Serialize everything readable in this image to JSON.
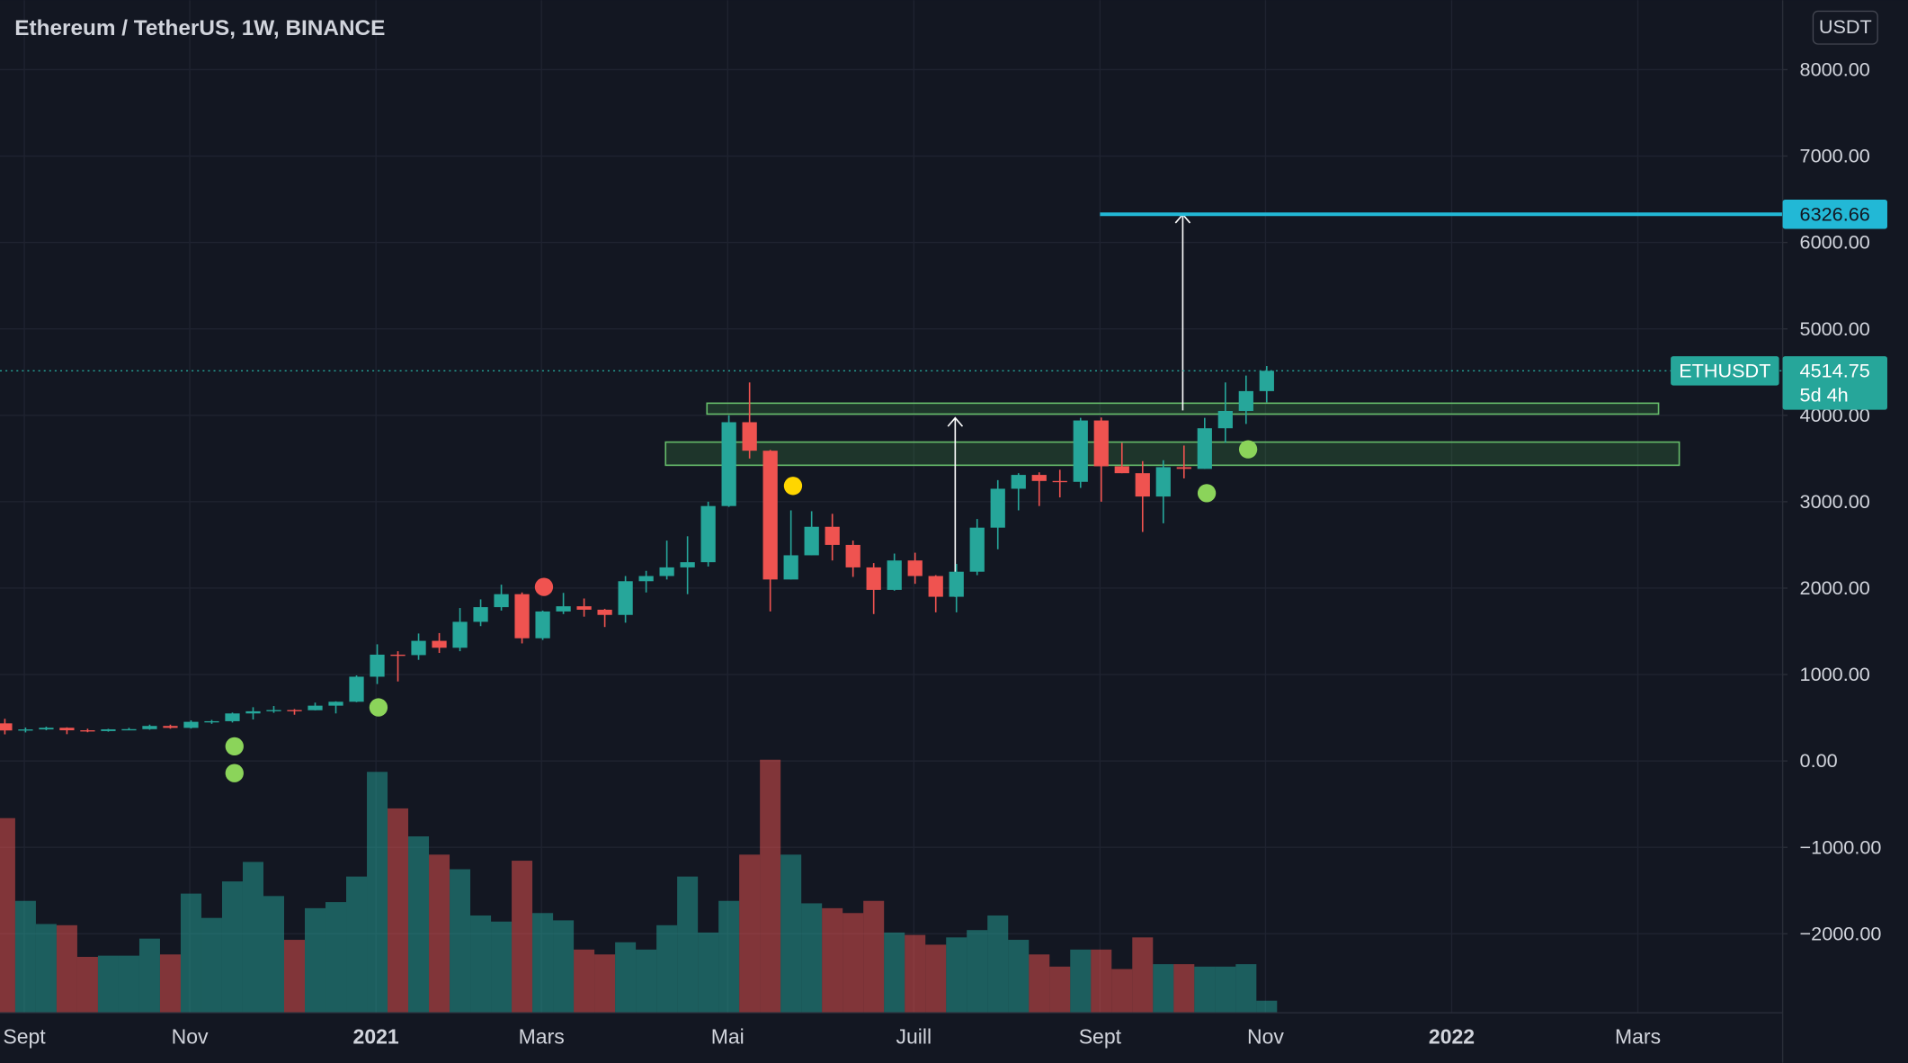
{
  "chart_data": {
    "type": "candlestick",
    "title": "Ethereum / TetherUS, 1W, BINANCE",
    "currency": "USDT",
    "up_color": "#26a69a",
    "down_color": "#ef5350",
    "grid": true,
    "x": [
      0,
      1,
      2,
      3,
      4,
      5,
      6,
      7,
      8,
      9,
      10,
      11,
      12,
      13,
      14,
      15,
      16,
      17,
      18,
      19,
      20,
      21,
      22,
      23,
      24,
      25,
      26,
      27,
      28,
      29,
      30,
      31,
      32,
      33,
      34,
      35,
      36,
      37,
      38,
      39,
      40,
      41,
      42,
      43,
      44,
      45,
      46,
      47,
      48,
      49,
      50,
      51,
      52,
      53,
      54,
      55,
      56,
      57,
      58,
      59,
      60,
      61
    ],
    "series": [
      {
        "name": "ETHUSDT",
        "open": [
          435,
          353,
          365,
          384,
          355,
          346,
          366,
          368,
          405,
          383,
          453,
          460,
          550,
          575,
          589,
          587,
          640,
          685,
          975,
          1230,
          1225,
          1390,
          1310,
          1610,
          1780,
          1930,
          1420,
          1730,
          1790,
          1750,
          1690,
          2080,
          2140,
          2240,
          2300,
          2950,
          3920,
          3590,
          2100,
          2380,
          2710,
          2500,
          2240,
          1980,
          2320,
          2140,
          1900,
          2190,
          2700,
          3150,
          3310,
          3240,
          3230,
          3940,
          3410,
          3330,
          3060,
          3400,
          3380,
          3850,
          4050,
          4280
        ],
        "high": [
          488,
          387,
          397,
          389,
          373,
          372,
          383,
          420,
          420,
          470,
          475,
          560,
          622,
          636,
          600,
          675,
          690,
          990,
          1350,
          1270,
          1475,
          1480,
          1770,
          1870,
          2040,
          1950,
          1740,
          1945,
          1880,
          1760,
          2140,
          2200,
          2550,
          2600,
          3000,
          4000,
          4380,
          3600,
          2900,
          2890,
          2860,
          2550,
          2290,
          2400,
          2410,
          2150,
          2280,
          2800,
          3250,
          3330,
          3340,
          3370,
          3970,
          3975,
          3680,
          3470,
          3480,
          3650,
          3970,
          4380,
          4460,
          4570
        ],
        "low": [
          308,
          330,
          355,
          310,
          332,
          339,
          360,
          361,
          373,
          375,
          430,
          445,
          480,
          557,
          535,
          585,
          550,
          680,
          890,
          920,
          1170,
          1250,
          1270,
          1560,
          1740,
          1360,
          1400,
          1700,
          1670,
          1550,
          1600,
          1950,
          2100,
          1930,
          2250,
          2940,
          3500,
          1730,
          2100,
          2380,
          2320,
          2130,
          1700,
          1970,
          2050,
          1720,
          1720,
          2150,
          2450,
          2900,
          2950,
          3050,
          3160,
          3000,
          3330,
          2650,
          2750,
          3270,
          3380,
          3680,
          3900,
          4150
        ],
        "close": [
          353,
          365,
          384,
          355,
          346,
          366,
          368,
          405,
          383,
          453,
          460,
          550,
          575,
          589,
          587,
          640,
          685,
          975,
          1230,
          1225,
          1390,
          1310,
          1610,
          1780,
          1930,
          1420,
          1730,
          1790,
          1750,
          1690,
          2080,
          2140,
          2240,
          2300,
          2950,
          3920,
          3590,
          2100,
          2380,
          2710,
          2500,
          2240,
          1980,
          2320,
          2140,
          1900,
          2190,
          2700,
          3150,
          3310,
          3240,
          3230,
          3940,
          3410,
          3330,
          3060,
          3400,
          3380,
          3850,
          4050,
          4280,
          4514.75
        ],
        "volume": [
          160,
          92,
          73,
          72,
          46,
          47,
          47,
          61,
          48,
          98,
          78,
          108,
          124,
          96,
          60,
          86,
          91,
          112,
          198,
          168,
          145,
          130,
          118,
          80,
          75,
          125,
          82,
          76,
          52,
          48,
          58,
          52,
          72,
          112,
          66,
          92,
          130,
          208,
          130,
          90,
          86,
          82,
          92,
          66,
          64,
          56,
          62,
          68,
          80,
          60,
          48,
          38,
          52,
          52,
          36,
          62,
          40,
          40,
          38,
          38,
          40,
          10
        ]
      }
    ],
    "last_price": 4514.75,
    "countdown": "5d 4h",
    "target": {
      "value": 6326.66,
      "x_start": 52.94,
      "color": "#22b8d6"
    },
    "zones": [
      {
        "x": [
          33.94,
          79.94
        ],
        "y": [
          4014,
          4140
        ]
      },
      {
        "x": [
          31.94,
          80.94
        ],
        "y": [
          3422,
          3690
        ]
      }
    ],
    "arrows": [
      {
        "x": 45.94,
        "y": [
          1900,
          3970
        ]
      },
      {
        "x": 56.94,
        "y": [
          4056,
          6324
        ]
      }
    ],
    "markers": [
      {
        "x": 11.1,
        "y": 169,
        "color": "#8bd45a"
      },
      {
        "x": 11.1,
        "y": -141,
        "color": "#8bd45a"
      },
      {
        "x": 18.06,
        "y": 620,
        "color": "#8bd45a"
      },
      {
        "x": 26.06,
        "y": 2014,
        "color": "#f05350"
      },
      {
        "x": 38.1,
        "y": 3183,
        "color": "#ffd600"
      },
      {
        "x": 58.1,
        "y": 3099,
        "color": "#8bd45a"
      },
      {
        "x": 60.1,
        "y": 3606,
        "color": "#8bd45a"
      }
    ],
    "xlim": [
      -0.235,
      85.94
    ],
    "xticks": [
      {
        "value": 0.94,
        "label": "Sept"
      },
      {
        "value": 8.94,
        "label": "Nov"
      },
      {
        "value": 17.94,
        "label": "2021"
      },
      {
        "value": 25.94,
        "label": "Mars"
      },
      {
        "value": 34.94,
        "label": "Mai"
      },
      {
        "value": 43.94,
        "label": "Juill"
      },
      {
        "value": 52.94,
        "label": "Sept"
      },
      {
        "value": 60.94,
        "label": "Nov"
      },
      {
        "value": 69.94,
        "label": "2022"
      },
      {
        "value": 78.94,
        "label": "Mars"
      }
    ],
    "ylim": [
      -2915,
      8803
    ],
    "yticks": [
      {
        "value": 8000,
        "label": "8000.00"
      },
      {
        "value": 7000,
        "label": "7000.00"
      },
      {
        "value": 6000,
        "label": "6000.00"
      },
      {
        "value": 5000,
        "label": "5000.00"
      },
      {
        "value": 4000,
        "label": "4000.00"
      },
      {
        "value": 3000,
        "label": "3000.00"
      },
      {
        "value": 2000,
        "label": "2000.00"
      },
      {
        "value": 1000,
        "label": "1000.00"
      },
      {
        "value": 0,
        "label": "0.00"
      },
      {
        "value": -1000,
        "label": "−1000.00"
      },
      {
        "value": -2000,
        "label": "−2000.00"
      }
    ]
  }
}
